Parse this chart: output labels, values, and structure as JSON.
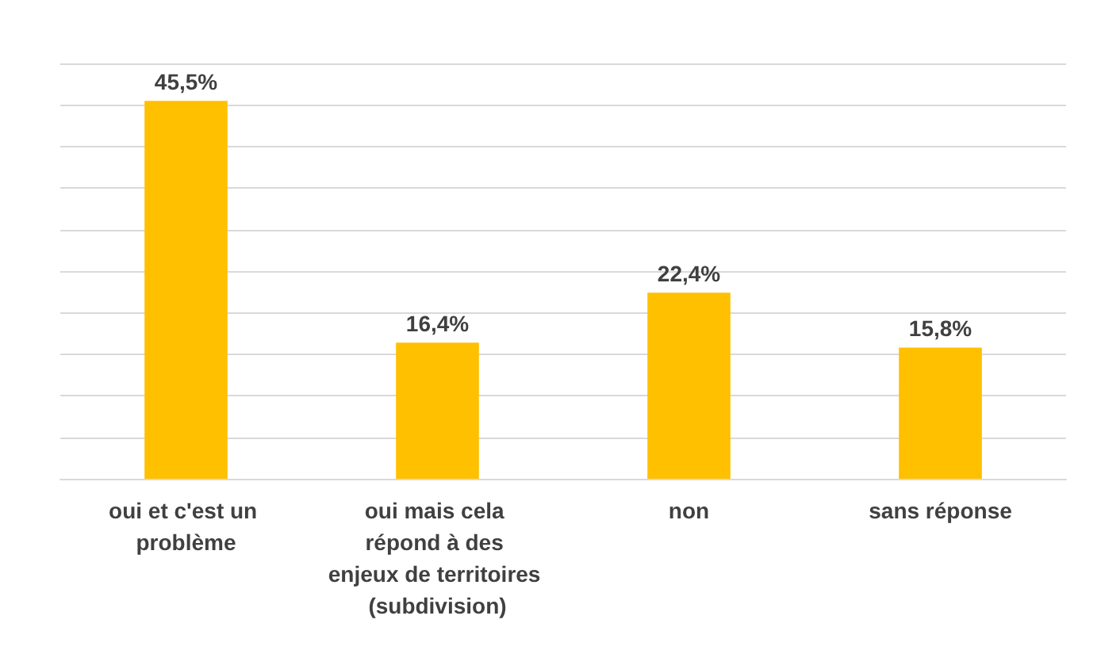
{
  "chart_data": {
    "type": "bar",
    "categories": [
      "oui et c'est un problème",
      "oui mais cela répond à des enjeux de territoires (subdivision)",
      "non",
      "sans réponse"
    ],
    "values": [
      45.5,
      16.4,
      22.4,
      15.8
    ],
    "value_labels": [
      "45,5%",
      "16,4%",
      "22,4%",
      "15,8%"
    ],
    "color": "#ffc000",
    "ylim": [
      0,
      50
    ],
    "yticks": [
      {
        "value": 0,
        "label": null
      },
      {
        "value": 5,
        "label": null
      },
      {
        "value": 10,
        "label": null
      },
      {
        "value": 15,
        "label": null
      },
      {
        "value": 20,
        "label": null
      },
      {
        "value": 25,
        "label": null
      },
      {
        "value": 30,
        "label": null
      },
      {
        "value": 35,
        "label": null
      },
      {
        "value": 40,
        "label": null
      },
      {
        "value": 45,
        "label": null
      },
      {
        "value": 50,
        "label": null
      }
    ],
    "tick_labels": "x",
    "grid": "y"
  }
}
